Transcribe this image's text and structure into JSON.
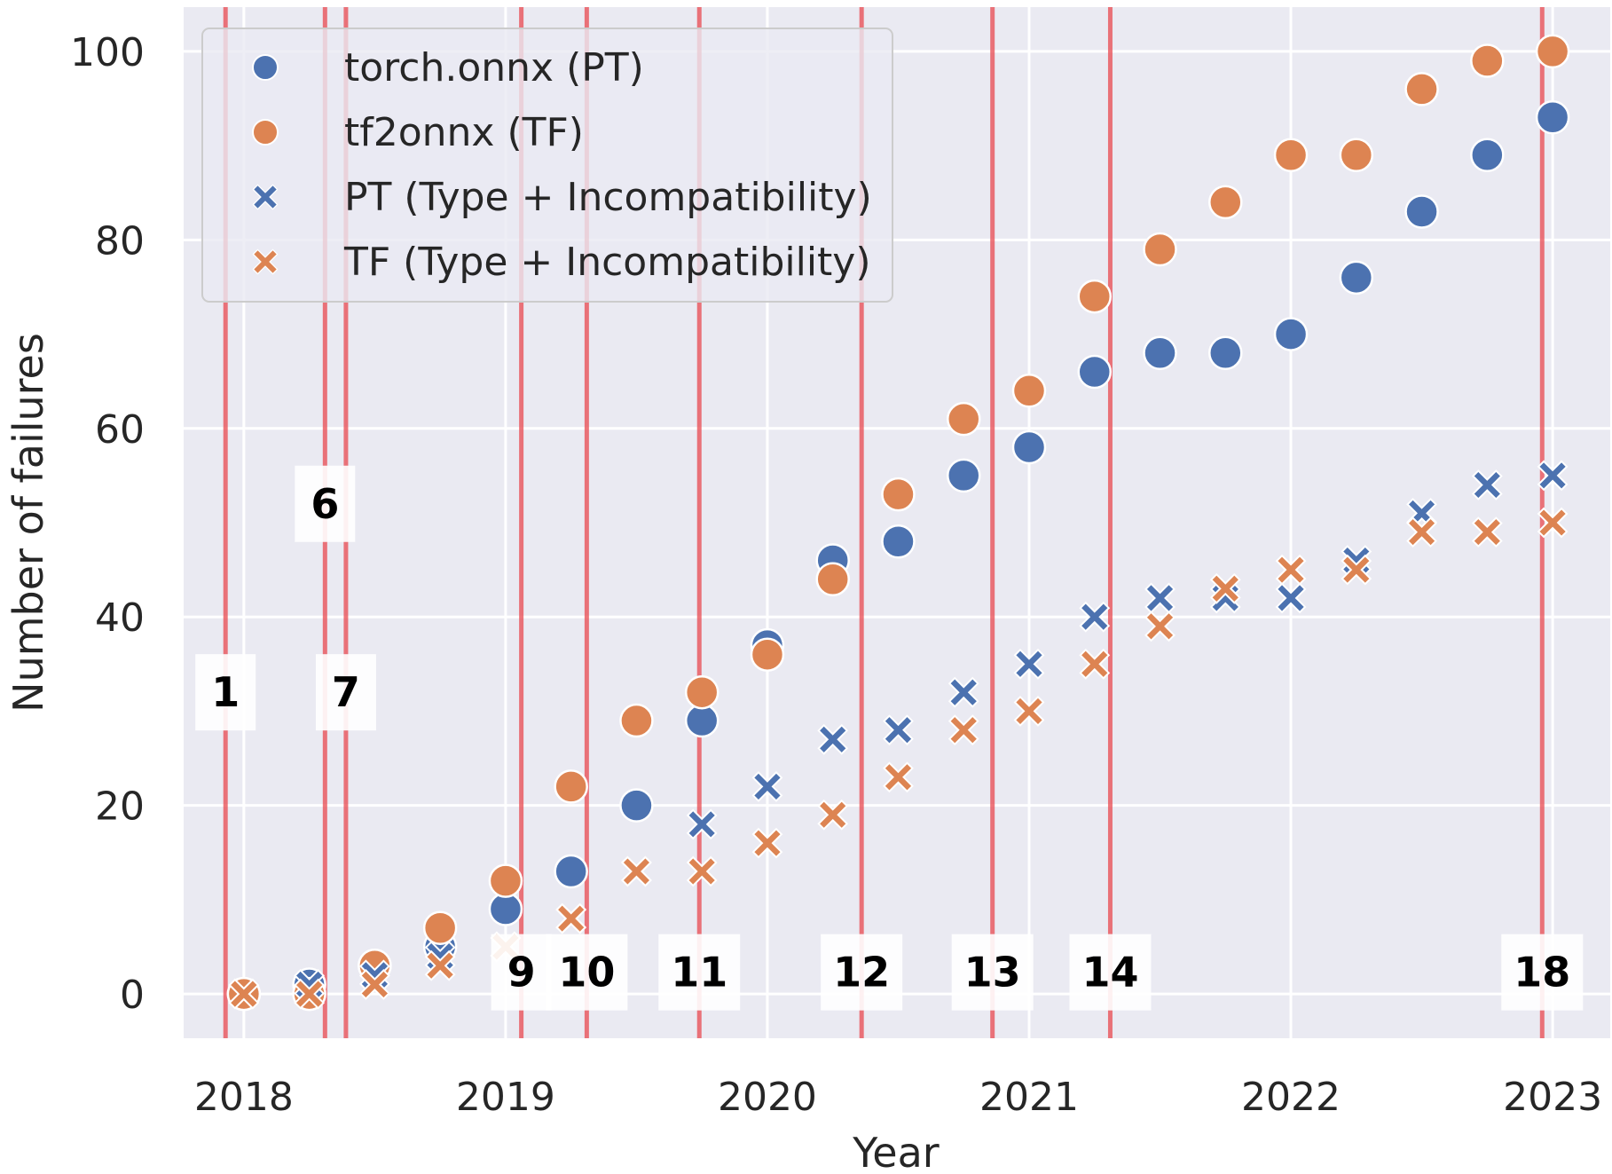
{
  "chart_data": {
    "type": "scatter",
    "title": "",
    "xlabel": "Year",
    "ylabel": "Number of failures",
    "xlim": [
      2017.77,
      2023.22
    ],
    "ylim": [
      -4.7,
      104.7
    ],
    "grid": true,
    "x_ticks": [
      2018,
      2019,
      2020,
      2021,
      2022,
      2023
    ],
    "y_ticks": [
      0,
      20,
      40,
      60,
      80,
      100
    ],
    "legend_position": "top-left",
    "series": [
      {
        "name": "torch.onnx (PT)",
        "marker": "circle",
        "color": "#4C72B0",
        "x": [
          2018.0,
          2018.25,
          2018.5,
          2018.75,
          2019.0,
          2019.25,
          2019.5,
          2019.75,
          2020.0,
          2020.25,
          2020.5,
          2020.75,
          2021.0,
          2021.25,
          2021.5,
          2021.75,
          2022.0,
          2022.25,
          2022.5,
          2022.75,
          2023.0
        ],
        "values": [
          0,
          1,
          3,
          5,
          9,
          13,
          20,
          29,
          37,
          46,
          48,
          55,
          58,
          66,
          68,
          68,
          70,
          76,
          83,
          89,
          93
        ]
      },
      {
        "name": "tf2onnx (TF)",
        "marker": "circle",
        "color": "#DD8452",
        "x": [
          2018.0,
          2018.25,
          2018.5,
          2018.75,
          2019.0,
          2019.25,
          2019.5,
          2019.75,
          2020.0,
          2020.25,
          2020.5,
          2020.75,
          2021.0,
          2021.25,
          2021.5,
          2021.75,
          2022.0,
          2022.25,
          2022.5,
          2022.75,
          2023.0
        ],
        "values": [
          0,
          0,
          3,
          7,
          12,
          22,
          29,
          32,
          36,
          44,
          53,
          61,
          64,
          74,
          79,
          84,
          89,
          89,
          96,
          99,
          100
        ]
      },
      {
        "name": "PT (Type + Incompatibility)",
        "marker": "x",
        "color": "#4C72B0",
        "x": [
          2018.0,
          2018.25,
          2018.5,
          2018.75,
          2019.0,
          2019.25,
          2019.5,
          2019.75,
          2020.0,
          2020.25,
          2020.5,
          2020.75,
          2021.0,
          2021.25,
          2021.5,
          2021.75,
          2022.0,
          2022.25,
          2022.5,
          2022.75,
          2023.0
        ],
        "values": [
          0,
          1,
          2,
          4,
          5,
          8,
          13,
          18,
          22,
          27,
          28,
          32,
          35,
          40,
          42,
          42,
          42,
          46,
          51,
          54,
          55
        ]
      },
      {
        "name": "TF (Type + Incompatibility)",
        "marker": "x",
        "color": "#DD8452",
        "x": [
          2018.0,
          2018.25,
          2018.5,
          2018.75,
          2019.0,
          2019.25,
          2019.5,
          2019.75,
          2020.0,
          2020.25,
          2020.5,
          2020.75,
          2021.0,
          2021.25,
          2021.5,
          2021.75,
          2022.0,
          2022.25,
          2022.5,
          2022.75,
          2023.0
        ],
        "values": [
          0,
          0,
          1,
          3,
          5,
          8,
          13,
          13,
          16,
          19,
          23,
          28,
          30,
          35,
          39,
          43,
          45,
          45,
          49,
          49,
          50
        ]
      }
    ],
    "vertical_lines": {
      "color": "#E8484F",
      "lines": [
        {
          "label": "1",
          "x": 2017.93,
          "label_y": 32
        },
        {
          "label": "6",
          "x": 2018.31,
          "label_y": 52
        },
        {
          "label": "7",
          "x": 2018.39,
          "label_y": 32
        },
        {
          "label": "9",
          "x": 2019.06,
          "label_y": 2.3
        },
        {
          "label": "10",
          "x": 2019.31,
          "label_y": 2.3
        },
        {
          "label": "11",
          "x": 2019.74,
          "label_y": 2.3
        },
        {
          "label": "12",
          "x": 2020.36,
          "label_y": 2.3
        },
        {
          "label": "13",
          "x": 2020.86,
          "label_y": 2.3
        },
        {
          "label": "14",
          "x": 2021.31,
          "label_y": 2.3
        },
        {
          "label": "18",
          "x": 2022.96,
          "label_y": 2.3
        }
      ]
    }
  }
}
